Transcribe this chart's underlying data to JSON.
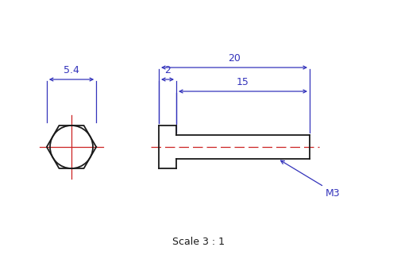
{
  "bg_color": "#ffffff",
  "line_color": "#1a1a1a",
  "blue_color": "#3333bb",
  "red_color": "#cc2222",
  "scale_text": "Scale 3 : 1",
  "label_M3": "M3",
  "dim_54": "5.4",
  "dim_2": "2",
  "dim_20": "20",
  "dim_15": "15",
  "fig_width": 5.0,
  "fig_height": 3.5,
  "dpi": 100
}
